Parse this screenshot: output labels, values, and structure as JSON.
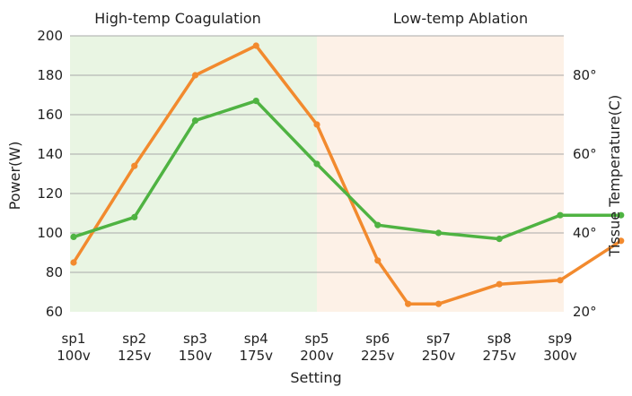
{
  "chart_data": {
    "type": "line",
    "categories": [
      "sp1\n100v",
      "sp2\n125v",
      "sp3\n150v",
      "sp4\n175v",
      "sp5\n200v",
      "sp6\n225v",
      "sp7\n250v",
      "sp8\n275v",
      "sp9\n300v"
    ],
    "xlabel": "Setting",
    "ylabel": "Power(W)",
    "y2label": "Tissue Temperature(C)",
    "ylim": [
      60,
      200
    ],
    "yticks": [
      60,
      80,
      100,
      120,
      140,
      160,
      180,
      200
    ],
    "y2lim": [
      20,
      90
    ],
    "y2ticks": [
      "20°",
      "40°",
      "60°",
      "80°"
    ],
    "grid": true,
    "regions": [
      {
        "label": "High-temp Coagulation",
        "from": 0,
        "to": 4,
        "color": "#e9f5e3"
      },
      {
        "label": "Low-temp Ablation",
        "from": 4,
        "to": 8.25,
        "color": "#fdf1e7"
      }
    ],
    "series": [
      {
        "axis": "left",
        "color": "#f28a2e",
        "x": [
          0,
          1,
          2,
          3,
          4,
          5,
          5.5,
          6,
          7,
          8,
          9
        ],
        "values": [
          85,
          134,
          180,
          195,
          155,
          86,
          64,
          64,
          74,
          76,
          96
        ]
      },
      {
        "axis": "left",
        "color": "#4fb342",
        "x": [
          0,
          1,
          2,
          3,
          4,
          5,
          6,
          7,
          8,
          9
        ],
        "values": [
          98,
          108,
          157,
          167,
          135,
          104,
          100,
          97,
          109,
          109
        ]
      }
    ]
  }
}
